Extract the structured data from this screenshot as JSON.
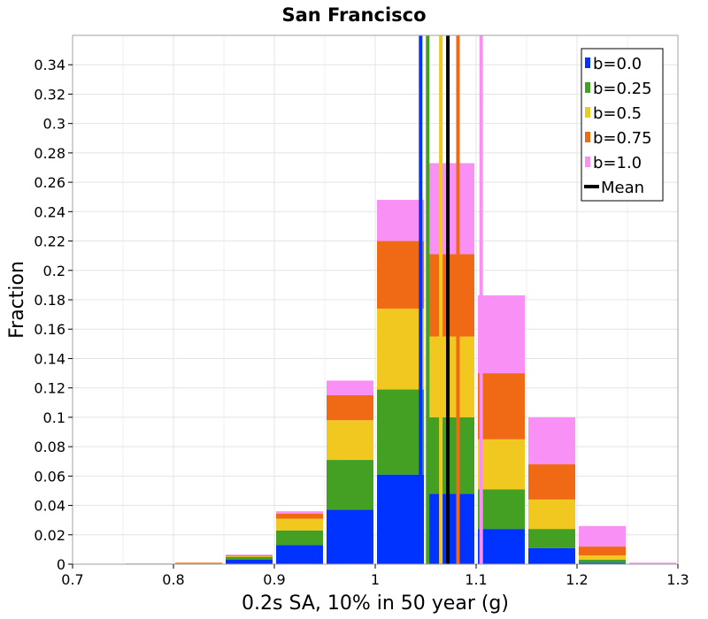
{
  "chart_data": {
    "type": "bar",
    "stacked": true,
    "title": "San Francisco",
    "xlabel": "0.2s SA, 10% in 50 year (g)",
    "ylabel": "Fraction",
    "xlim": [
      0.7,
      1.3
    ],
    "ylim": [
      0,
      0.36
    ],
    "xticks": [
      "0.7",
      "0.8",
      "0.9",
      "1",
      "1.1",
      "1.2",
      "1.3"
    ],
    "xtick_values": [
      0.7,
      0.8,
      0.9,
      1.0,
      1.1,
      1.2,
      1.3
    ],
    "yticks": [
      "0",
      "0.02",
      "0.04",
      "0.06",
      "0.08",
      "0.1",
      "0.12",
      "0.14",
      "0.16",
      "0.18",
      "0.2",
      "0.22",
      "0.24",
      "0.26",
      "0.28",
      "0.3",
      "0.32",
      "0.34"
    ],
    "ytick_values": [
      0,
      0.02,
      0.04,
      0.06,
      0.08,
      0.1,
      0.12,
      0.14,
      0.16,
      0.18,
      0.2,
      0.22,
      0.24,
      0.26,
      0.28,
      0.3,
      0.32,
      0.34
    ],
    "grid": true,
    "legend_position": "top-right",
    "bin_width": 0.05,
    "bin_centers": [
      0.725,
      0.775,
      0.825,
      0.875,
      0.925,
      0.975,
      1.025,
      1.075,
      1.125,
      1.175,
      1.225,
      1.275
    ],
    "series": [
      {
        "name": "b=0.0",
        "color": "#0033ff",
        "values": [
          0.0,
          0.0,
          0.0005,
          0.003,
          0.013,
          0.037,
          0.061,
          0.048,
          0.024,
          0.011,
          0.001,
          0.0
        ],
        "mean": 1.045
      },
      {
        "name": "b=0.25",
        "color": "#44a022",
        "values": [
          0.0,
          0.0,
          0.0003,
          0.002,
          0.01,
          0.034,
          0.058,
          0.052,
          0.027,
          0.013,
          0.002,
          0.0
        ],
        "mean": 1.052
      },
      {
        "name": "b=0.5",
        "color": "#f0c820",
        "values": [
          0.0,
          0.0,
          0.0001,
          0.0005,
          0.008,
          0.027,
          0.055,
          0.055,
          0.034,
          0.02,
          0.003,
          0.0
        ],
        "mean": 1.065
      },
      {
        "name": "b=0.75",
        "color": "#f06a15",
        "values": [
          0.0,
          0.0,
          0.0001,
          0.0005,
          0.0035,
          0.017,
          0.046,
          0.056,
          0.045,
          0.024,
          0.006,
          0.0
        ],
        "mean": 1.082
      },
      {
        "name": "b=1.0",
        "color": "#f990f5",
        "values": [
          0.0,
          0.0005,
          0.0,
          0.0005,
          0.0015,
          0.01,
          0.028,
          0.062,
          0.053,
          0.032,
          0.014,
          0.001
        ],
        "mean": 1.105
      }
    ],
    "mean_line": {
      "name": "Mean",
      "color": "#000000",
      "value": 1.072
    }
  }
}
